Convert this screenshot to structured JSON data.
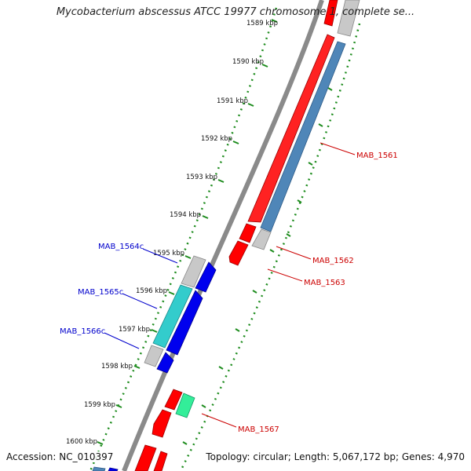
{
  "header": {
    "title": "Mycobacterium abscessus ATCC 19977 chromosome 1, complete se..."
  },
  "footer": {
    "accession": "Accession: NC_010397",
    "summary": "Topology: circular; Length: 5,067,172 bp; Genes: 4,970"
  },
  "scale": {
    "labels": [
      "1589 kbp",
      "1590 kbp",
      "1591 kbp",
      "1592 kbp",
      "1593 kbp",
      "1594 kbp",
      "1595 kbp",
      "1596 kbp",
      "1597 kbp",
      "1598 kbp",
      "1599 kbp",
      "1600 kbp"
    ]
  },
  "genes": {
    "forward": [
      {
        "name": "MAB_1561",
        "color": "#cc0000"
      },
      {
        "name": "MAB_1562",
        "color": "#cc0000"
      },
      {
        "name": "MAB_1563",
        "color": "#cc0000"
      },
      {
        "name": "MAB_1567",
        "color": "#cc0000"
      }
    ],
    "reverse": [
      {
        "name": "MAB_1564c",
        "color": "#0000cc"
      },
      {
        "name": "MAB_1565c",
        "color": "#0000cc"
      },
      {
        "name": "MAB_1566c",
        "color": "#0000cc"
      }
    ]
  },
  "colors": {
    "cds_forward": "#ff0000",
    "cds_reverse": "#0000ee",
    "feature_steelblue": "#4f86b8",
    "feature_cyan": "#33cccc",
    "feature_green": "#22dd88",
    "feature_gray": "#bbbbbb",
    "backbone": "#888888",
    "tick": "#1e8c1e"
  }
}
